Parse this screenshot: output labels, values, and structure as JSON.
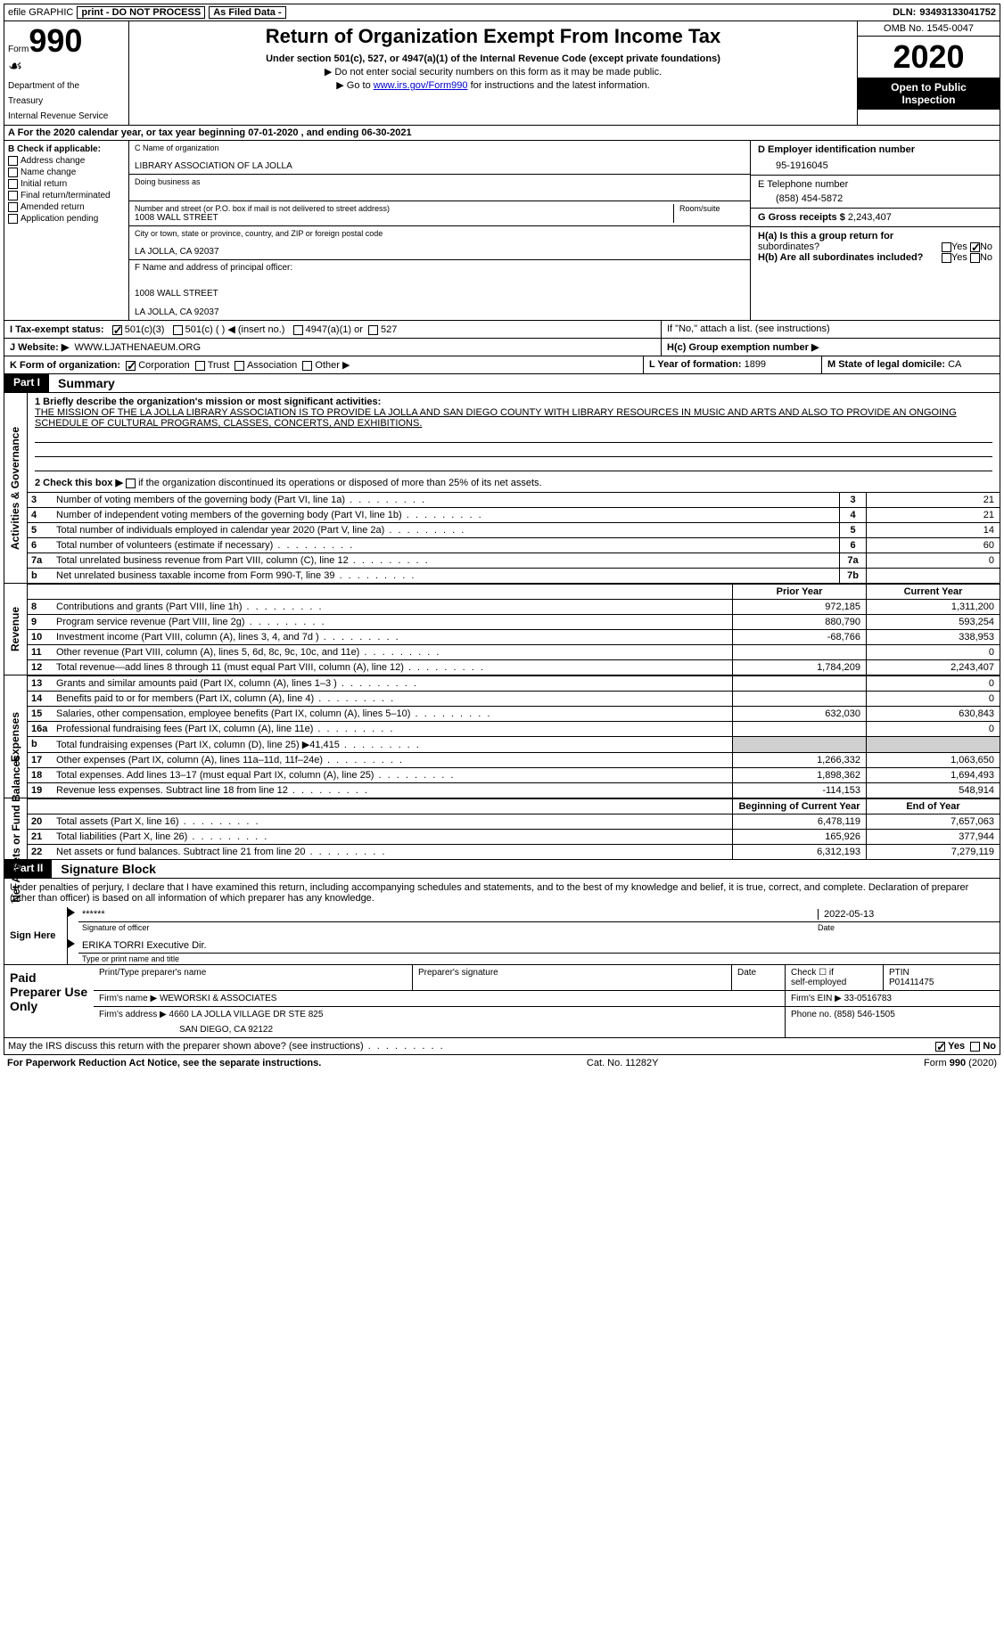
{
  "colors": {
    "text": "#000000",
    "bg": "#ffffff",
    "invert_bg": "#000000",
    "invert_text": "#ffffff",
    "shade": "#d0d0d0",
    "link": "#0000cc"
  },
  "topbar": {
    "efile": "efile GRAPHIC",
    "print": "print - DO NOT PROCESS",
    "asfiled": "As Filed Data -",
    "dln_label": "DLN:",
    "dln": "93493133041752"
  },
  "header": {
    "form_word": "Form",
    "form_no": "990",
    "dept1": "Department of the",
    "dept2": "Treasury",
    "dept3": "Internal Revenue Service",
    "title": "Return of Organization Exempt From Income Tax",
    "sub1": "Under section 501(c), 527, or 4947(a)(1) of the Internal Revenue Code (except private foundations)",
    "sub2": "▶ Do not enter social security numbers on this form as it may be made public.",
    "sub3_pre": "▶ Go to ",
    "sub3_link": "www.irs.gov/Form990",
    "sub3_post": " for instructions and the latest information.",
    "omb": "OMB No. 1545-0047",
    "year": "2020",
    "open1": "Open to Public",
    "open2": "Inspection"
  },
  "rowA": "A  For the 2020 calendar year, or tax year beginning 07-01-2020  , and ending 06-30-2021",
  "colB": {
    "title": "B Check if applicable:",
    "items": [
      "Address change",
      "Name change",
      "Initial return",
      "Final return/terminated",
      "Amended return",
      "Application pending"
    ]
  },
  "colC": {
    "name_label": "C Name of organization",
    "name": "LIBRARY ASSOCIATION OF LA JOLLA",
    "dba_label": "Doing business as",
    "dba": "",
    "addr_label": "Number and street (or P.O. box if mail is not delivered to street address)",
    "room_label": "Room/suite",
    "addr": "1008 WALL STREET",
    "city_label": "City or town, state or province, country, and ZIP or foreign postal code",
    "city": "LA JOLLA, CA  92037",
    "F_label": "F  Name and address of principal officer:",
    "F_addr1": "1008 WALL STREET",
    "F_addr2": "LA JOLLA, CA  92037"
  },
  "colD": {
    "D_label": "D Employer identification number",
    "D_val": "95-1916045",
    "E_label": "E Telephone number",
    "E_val": "(858) 454-5872",
    "G_label": "G Gross receipts $",
    "G_val": "2,243,407"
  },
  "H": {
    "a_label": "H(a)  Is this a group return for",
    "a_label2": "subordinates?",
    "b_label": "H(b)  Are all subordinates included?",
    "b_note": "If \"No,\" attach a list. (see instructions)",
    "c_label": "H(c)  Group exemption number ▶",
    "yes": "Yes",
    "no": "No"
  },
  "I": {
    "label": "I  Tax-exempt status:",
    "o1": "501(c)(3)",
    "o2": "501(c) (  ) ◀ (insert no.)",
    "o3": "4947(a)(1) or",
    "o4": "527"
  },
  "J": {
    "label": "J  Website: ▶",
    "val": "WWW.LJATHENAEUM.ORG"
  },
  "K": {
    "label": "K Form of organization:",
    "o1": "Corporation",
    "o2": "Trust",
    "o3": "Association",
    "o4": "Other ▶"
  },
  "L": {
    "label": "L Year of formation:",
    "val": "1899"
  },
  "M": {
    "label": "M State of legal domicile:",
    "val": "CA"
  },
  "partI": {
    "num": "Part I",
    "title": "Summary"
  },
  "mission": {
    "line1_label": "1  Briefly describe the organization's mission or most significant activities:",
    "text": "THE MISSION OF THE LA JOLLA LIBRARY ASSOCIATION IS TO PROVIDE LA JOLLA AND SAN DIEGO COUNTY WITH LIBRARY RESOURCES IN MUSIC AND ARTS AND ALSO TO PROVIDE AN ONGOING SCHEDULE OF CULTURAL PROGRAMS, CLASSES, CONCERTS, AND EXHIBITIONS.",
    "line2_label": "2  Check this box ▶",
    "line2_post": " if the organization discontinued its operations or disposed of more than 25% of its net assets."
  },
  "side": {
    "s1": "Activities & Governance",
    "s2": "Revenue",
    "s3": "Expenses",
    "s4": "Net Assets or Fund Balances"
  },
  "gov_rows": [
    {
      "n": "3",
      "t": "Number of voting members of the governing body (Part VI, line 1a)",
      "c": "3",
      "v": "21"
    },
    {
      "n": "4",
      "t": "Number of independent voting members of the governing body (Part VI, line 1b)",
      "c": "4",
      "v": "21"
    },
    {
      "n": "5",
      "t": "Total number of individuals employed in calendar year 2020 (Part V, line 2a)",
      "c": "5",
      "v": "14"
    },
    {
      "n": "6",
      "t": "Total number of volunteers (estimate if necessary)",
      "c": "6",
      "v": "60"
    },
    {
      "n": "7a",
      "t": "Total unrelated business revenue from Part VIII, column (C), line 12",
      "c": "7a",
      "v": "0"
    },
    {
      "n": "b",
      "t": "Net unrelated business taxable income from Form 990-T, line 39",
      "c": "7b",
      "v": ""
    }
  ],
  "col_hdrs": {
    "prior": "Prior Year",
    "current": "Current Year",
    "boy": "Beginning of Current Year",
    "eoy": "End of Year"
  },
  "rev_rows": [
    {
      "n": "8",
      "t": "Contributions and grants (Part VIII, line 1h)",
      "p": "972,185",
      "c": "1,311,200"
    },
    {
      "n": "9",
      "t": "Program service revenue (Part VIII, line 2g)",
      "p": "880,790",
      "c": "593,254"
    },
    {
      "n": "10",
      "t": "Investment income (Part VIII, column (A), lines 3, 4, and 7d )",
      "p": "-68,766",
      "c": "338,953"
    },
    {
      "n": "11",
      "t": "Other revenue (Part VIII, column (A), lines 5, 6d, 8c, 9c, 10c, and 11e)",
      "p": "",
      "c": "0"
    },
    {
      "n": "12",
      "t": "Total revenue—add lines 8 through 11 (must equal Part VIII, column (A), line 12)",
      "p": "1,784,209",
      "c": "2,243,407"
    }
  ],
  "exp_rows": [
    {
      "n": "13",
      "t": "Grants and similar amounts paid (Part IX, column (A), lines 1–3 )",
      "p": "",
      "c": "0"
    },
    {
      "n": "14",
      "t": "Benefits paid to or for members (Part IX, column (A), line 4)",
      "p": "",
      "c": "0"
    },
    {
      "n": "15",
      "t": "Salaries, other compensation, employee benefits (Part IX, column (A), lines 5–10)",
      "p": "632,030",
      "c": "630,843"
    },
    {
      "n": "16a",
      "t": "Professional fundraising fees (Part IX, column (A), line 11e)",
      "p": "",
      "c": "0"
    },
    {
      "n": "b",
      "t": "Total fundraising expenses (Part IX, column (D), line 25) ▶41,415",
      "p": "shade",
      "c": "shade"
    },
    {
      "n": "17",
      "t": "Other expenses (Part IX, column (A), lines 11a–11d, 11f–24e)",
      "p": "1,266,332",
      "c": "1,063,650"
    },
    {
      "n": "18",
      "t": "Total expenses. Add lines 13–17 (must equal Part IX, column (A), line 25)",
      "p": "1,898,362",
      "c": "1,694,493"
    },
    {
      "n": "19",
      "t": "Revenue less expenses. Subtract line 18 from line 12",
      "p": "-114,153",
      "c": "548,914"
    }
  ],
  "net_rows": [
    {
      "n": "20",
      "t": "Total assets (Part X, line 16)",
      "p": "6,478,119",
      "c": "7,657,063"
    },
    {
      "n": "21",
      "t": "Total liabilities (Part X, line 26)",
      "p": "165,926",
      "c": "377,944"
    },
    {
      "n": "22",
      "t": "Net assets or fund balances. Subtract line 21 from line 20",
      "p": "6,312,193",
      "c": "7,279,119"
    }
  ],
  "partII": {
    "num": "Part II",
    "title": "Signature Block"
  },
  "sig": {
    "decl": "Under penalties of perjury, I declare that I have examined this return, including accompanying schedules and statements, and to the best of my knowledge and belief, it is true, correct, and complete. Declaration of preparer (other than officer) is based on all information of which preparer has any knowledge.",
    "sign_here": "Sign Here",
    "stars": "******",
    "sig_officer": "Signature of officer",
    "date": "2022-05-13",
    "date_label": "Date",
    "name_title": "ERIKA TORRI Executive Dir.",
    "name_title_label": "Type or print name and title"
  },
  "prep": {
    "label": "Paid Preparer Use Only",
    "r1": {
      "c1": "Print/Type preparer's name",
      "c2": "Preparer's signature",
      "c3": "Date",
      "c4_top": "Check ☐ if",
      "c4_bot": "self-employed",
      "c5_top": "PTIN",
      "c5_bot": "P01411475"
    },
    "r2": {
      "c1": "Firm's name    ▶ WEWORSKI & ASSOCIATES",
      "c2": "Firm's EIN ▶ 33-0516783"
    },
    "r3": {
      "c1": "Firm's address ▶ 4660 LA JOLLA VILLAGE DR STE 825",
      "c2": "Phone no. (858) 546-1505"
    },
    "r3b": "SAN DIEGO, CA  92122"
  },
  "footer": {
    "q": "May the IRS discuss this return with the preparer shown above? (see instructions)",
    "yes": "Yes",
    "no": "No",
    "pra": "For Paperwork Reduction Act Notice, see the separate instructions.",
    "cat": "Cat. No. 11282Y",
    "form": "Form 990 (2020)"
  }
}
